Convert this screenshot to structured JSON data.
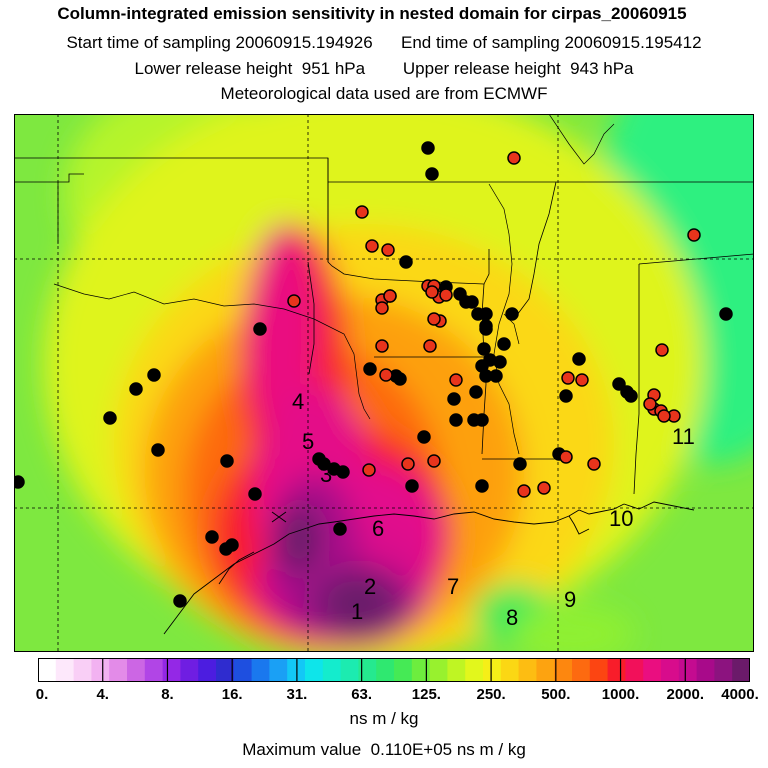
{
  "title": "Column-integrated emission sensitivity in nested domain for cirpas_20060915",
  "line_sampling": "Start time of sampling 20060915.194926      End time of sampling 20060915.195412",
  "line_release": "Lower release height  951 hPa        Upper release height  943 hPa",
  "line_met": "Meteorological data used are from ECMWF",
  "colorbar": {
    "colors": [
      "#ffffff",
      "#fde8fb",
      "#f9cff6",
      "#f2b2f1",
      "#e38be8",
      "#cc66e4",
      "#b145e6",
      "#9428e6",
      "#6f1ee2",
      "#4c1de0",
      "#2f2ccf",
      "#1e4fe0",
      "#1a78ee",
      "#1aa0f5",
      "#13c8f6",
      "#0ee5ea",
      "#14eccd",
      "#1cebb0",
      "#25e98f",
      "#2fe870",
      "#45ea55",
      "#6ded3e",
      "#98f12e",
      "#bff523",
      "#e2f71c",
      "#f6ef18",
      "#fbd714",
      "#fdbd12",
      "#fda310",
      "#fd870f",
      "#fd6a10",
      "#fc4512",
      "#f81d2a",
      "#f2105a",
      "#ea0e80",
      "#d80c8c",
      "#c40b90",
      "#a80a8a",
      "#8c137f",
      "#6b1a6a"
    ],
    "tick_labels": [
      "0.",
      "4.",
      "8.",
      "16.",
      "31.",
      "63.",
      "125.",
      "250.",
      "500.",
      "1000.",
      "2000.",
      "4000."
    ],
    "units": "ns m / kg"
  },
  "max_line": "Maximum value  0.110E+05 ns m / kg",
  "map": {
    "region_labels": [
      "1",
      "2",
      "3",
      "4",
      "5",
      "6",
      "7",
      "8",
      "9",
      "10",
      "11"
    ],
    "station_colors": {
      "black": "#000000",
      "red": "#e8341c"
    }
  }
}
